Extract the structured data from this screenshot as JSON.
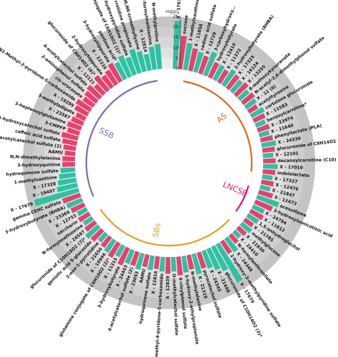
{
  "chart_data": {
    "type": "circular-bar",
    "axis": {
      "title": "-log(p)",
      "ticks": [
        0,
        5,
        10,
        15,
        20,
        25
      ],
      "max": 25
    },
    "colors": {
      "up": "#2cc2a3",
      "down": "#ea3f6c"
    },
    "groups": [
      {
        "name": "AS",
        "color": "#d9691a"
      },
      {
        "name": "LNCSB",
        "color": "#d6157f"
      },
      {
        "name": "SBs",
        "color": "#e2a21d"
      },
      {
        "name": "SSB",
        "color": "#7a6cb3"
      }
    ],
    "bars": [
      {
        "label": "X - 17679",
        "value": 23,
        "dir": "up"
      },
      {
        "label": "sucrose",
        "value": 16,
        "dir": "down"
      },
      {
        "label": "1-methylxanthine",
        "value": 13,
        "dir": "up"
      },
      {
        "label": "X - 11858",
        "value": 11,
        "dir": "down"
      },
      {
        "label": "cadinic acid sulfate",
        "value": 10,
        "dir": "up"
      },
      {
        "label": "X - 12729",
        "value": 9,
        "dir": "down"
      },
      {
        "label": "3-carboxyhydroxy...",
        "value": 12,
        "dir": "up"
      },
      {
        "label": "hydroxybutyrate",
        "value": 8,
        "dir": "down"
      },
      {
        "label": "X - 12410",
        "value": 8,
        "dir": "up"
      },
      {
        "label": "X - 11372",
        "value": 7,
        "dir": "down"
      },
      {
        "label": "3-hydroxybutyrate (BHBA)",
        "value": 9,
        "dir": "up"
      },
      {
        "label": "X - 17325",
        "value": 8,
        "dir": "down"
      },
      {
        "label": "X - 16124",
        "value": 7,
        "dir": "up"
      },
      {
        "label": "X - 13255",
        "value": 8,
        "dir": "down"
      },
      {
        "label": "8-methoxykynurenate",
        "value": 6,
        "dir": "up"
      },
      {
        "label": "N-acetyl-2,6-dimethylphenol sulfate",
        "value": 7,
        "dir": "down"
      },
      {
        "label": "X - 12 (6)",
        "value": 6,
        "dir": "up"
      },
      {
        "label": "acetyltyrosine",
        "value": 5,
        "dir": "down"
      },
      {
        "label": "cortolone glucuronide",
        "value": 7,
        "dir": "up"
      },
      {
        "label": "X - 11583",
        "value": 6,
        "dir": "down"
      },
      {
        "label": "benzoylcarnitine*",
        "value": 5,
        "dir": "up"
      },
      {
        "label": "X - 23974",
        "value": 6,
        "dir": "down"
      },
      {
        "label": "X - 11640",
        "value": 5,
        "dir": "up"
      },
      {
        "label": "phenyllactate (PLA)",
        "value": 6,
        "dir": "down"
      },
      {
        "label": "X - 24330",
        "value": 7,
        "dir": "up"
      },
      {
        "label": "glucuronide of C8H14O2 (6)*",
        "value": 6,
        "dir": "down"
      },
      {
        "label": "X - 12101",
        "value": 5,
        "dir": "up"
      },
      {
        "label": "decanoylcarnitine (C10)",
        "value": 6,
        "dir": "down"
      },
      {
        "label": "X - 17010",
        "value": 7,
        "dir": "up"
      },
      {
        "label": "indolelactate",
        "value": 6,
        "dir": "down"
      },
      {
        "label": "X - 17327",
        "value": 5,
        "dir": "up"
      },
      {
        "label": "X - 12476",
        "value": 6,
        "dir": "down"
      },
      {
        "label": "X - 21847",
        "value": 5,
        "dir": "up"
      },
      {
        "label": "X - 12472",
        "value": 7,
        "dir": "down"
      },
      {
        "label": "acesulfame",
        "value": 11,
        "dir": "up"
      },
      {
        "label": "3-hydroxyisonicotinic acid",
        "value": 9,
        "dir": "down"
      },
      {
        "label": "X - 24794",
        "value": 6,
        "dir": "up"
      },
      {
        "label": "X - 11612",
        "value": 7,
        "dir": "down"
      },
      {
        "label": "1,5-anhydroglucitol",
        "value": 6,
        "dir": "up"
      },
      {
        "label": "X - 21785",
        "value": 5,
        "dir": "down"
      },
      {
        "label": "methylglucose",
        "value": 6,
        "dir": "up"
      },
      {
        "label": "X - 21830",
        "value": 5,
        "dir": "down"
      },
      {
        "label": "X - 24410",
        "value": 4,
        "dir": "up"
      },
      {
        "label": "N-formylanthranilate",
        "value": 5,
        "dir": "down"
      },
      {
        "label": "X - 24348",
        "value": 8,
        "dir": "up"
      },
      {
        "label": "2-hydroxy-3-methylpyridine sulfate",
        "value": 7,
        "dir": "down"
      },
      {
        "label": "X - 17679",
        "value": 21,
        "dir": "up"
      },
      {
        "label": "glucuronide of C10H14O2 (3)*",
        "value": 13,
        "dir": "up"
      },
      {
        "label": "X - 21448",
        "value": 11,
        "dir": "up"
      },
      {
        "label": "X - 24345",
        "value": 9,
        "dir": "up"
      },
      {
        "label": "pyrocatechol sulfate",
        "value": 8,
        "dir": "down"
      },
      {
        "label": "X - 21319",
        "value": 10,
        "dir": "up"
      },
      {
        "label": "N-methylalanine",
        "value": 7,
        "dir": "down"
      },
      {
        "label": "3-hydroxy-2-ethylpropionate",
        "value": 8,
        "dir": "up"
      },
      {
        "label": "4-vinylphenol sulfate",
        "value": 9,
        "dir": "down"
      },
      {
        "label": "O-methylcatechol sulfate",
        "value": 7,
        "dir": "up"
      },
      {
        "label": "X - 12839",
        "value": 8,
        "dir": "down"
      },
      {
        "label": "2-methyl-4-pyridone-5-carboxamide",
        "value": 7,
        "dir": "up"
      },
      {
        "label": "X - 12816",
        "value": 6,
        "dir": "down"
      },
      {
        "label": "hydroquinone sulfate",
        "value": 7,
        "dir": "up"
      },
      {
        "label": "AAMU",
        "value": 6,
        "dir": "down"
      },
      {
        "label": "X - 23053",
        "value": 8,
        "dir": "up"
      },
      {
        "label": "4-acetylcatechol sulfate (2)",
        "value": 7,
        "dir": "down"
      },
      {
        "label": "X - 24443",
        "value": 7,
        "dir": "up"
      },
      {
        "label": "3-hydroxybutyrate",
        "value": 9,
        "dir": "down"
      },
      {
        "label": "X - 11315",
        "value": 6,
        "dir": "up"
      },
      {
        "label": "glutamine conjugate of C6H10O2 (2)*",
        "value": 8,
        "dir": "down"
      },
      {
        "label": "X - 16946",
        "value": 7,
        "dir": "up"
      },
      {
        "label": "X - 21656",
        "value": 6,
        "dir": "down"
      },
      {
        "label": "2-oxo-1-pyrrolidine",
        "value": 5,
        "dir": "up"
      },
      {
        "label": "genistic acid 5-glucoside",
        "value": 7,
        "dir": "down"
      },
      {
        "label": "glucuronide of C10H18O2 (7)*",
        "value": 8,
        "dir": "up"
      },
      {
        "label": "X - 24587",
        "value": 6,
        "dir": "down"
      },
      {
        "label": "N-formylmethionine",
        "value": 5,
        "dir": "up"
      },
      {
        "label": "saccharin",
        "value": 6,
        "dir": "down"
      },
      {
        "label": "X - 12753",
        "value": 5,
        "dir": "up"
      },
      {
        "label": "X - 23369",
        "value": 7,
        "dir": "down"
      },
      {
        "label": "3-hydroxybutyrate (BHBA)",
        "value": 8,
        "dir": "up"
      },
      {
        "label": "gamma-CEHC sulfate",
        "value": 9,
        "dir": "down"
      },
      {
        "label": "X - 17679",
        "value": 22,
        "dir": "up"
      },
      {
        "label": "X - 19497",
        "value": 10,
        "dir": "up"
      },
      {
        "label": "X - 17328",
        "value": 9,
        "dir": "up"
      },
      {
        "label": "1-methylxanthine",
        "value": 8,
        "dir": "up"
      },
      {
        "label": "hydroquinone sulfate",
        "value": 7,
        "dir": "up"
      },
      {
        "label": "3-hydroxyquinine",
        "value": 6,
        "dir": "down"
      },
      {
        "label": "N,N-dimethylalanine",
        "value": 6,
        "dir": "down"
      },
      {
        "label": "AAMU",
        "value": 5,
        "dir": "down"
      },
      {
        "label": "4-acetylcatechol sulfate (2)",
        "value": 6,
        "dir": "down"
      },
      {
        "label": "caffeic acid sulfate",
        "value": 7,
        "dir": "down"
      },
      {
        "label": "4-hydroxycatechol sulfate",
        "value": 8,
        "dir": "down"
      },
      {
        "label": "3-CMPFP",
        "value": 6,
        "dir": "down"
      },
      {
        "label": "3-heptenoylglutamine",
        "value": 7,
        "dir": "down"
      },
      {
        "label": "X - 23587",
        "value": 6,
        "dir": "down"
      },
      {
        "label": "3-methyladipate",
        "value": 5,
        "dir": "down"
      },
      {
        "label": "X - 19299",
        "value": 7,
        "dir": "down"
      },
      {
        "label": "N1-Methyl-2-pyridone-5-carboxamide",
        "value": 8,
        "dir": "down"
      },
      {
        "label": "cis-urocanate",
        "value": 6,
        "dir": "down"
      },
      {
        "label": "2-aminophenol sulfate",
        "value": 7,
        "dir": "down"
      },
      {
        "label": "4-acetylcatechol sulfate",
        "value": 8,
        "dir": "down"
      },
      {
        "label": "X - 12121",
        "value": 6,
        "dir": "down"
      },
      {
        "label": "glucuronide of C8H14O2 (6)*",
        "value": 9,
        "dir": "down"
      },
      {
        "label": "2-hydroxyhippurate",
        "value": 7,
        "dir": "down"
      },
      {
        "label": "X - 12216",
        "value": 8,
        "dir": "down"
      },
      {
        "label": "3-hydroxyhippurate",
        "value": 10,
        "dir": "down"
      },
      {
        "label": "pentose acid*",
        "value": 9,
        "dir": "up"
      },
      {
        "label": "glutamine conjugate of C6H10O2 (2)*",
        "value": 11,
        "dir": "up"
      },
      {
        "label": "3-hydroxypyridine sulfate",
        "value": 9,
        "dir": "up"
      },
      {
        "label": "2-oxo-1-pyrrolidine propionate",
        "value": 12,
        "dir": "up"
      },
      {
        "label": "hydroxy-N6,N6,N6-trimethyllysine",
        "value": 10,
        "dir": "up"
      },
      {
        "label": "X - 12814",
        "value": 8,
        "dir": "up"
      },
      {
        "label": "N-formylmethionine",
        "value": 11,
        "dir": "up"
      },
      {
        "label": "N-methylproline",
        "value": 12,
        "dir": "up"
      }
    ]
  }
}
